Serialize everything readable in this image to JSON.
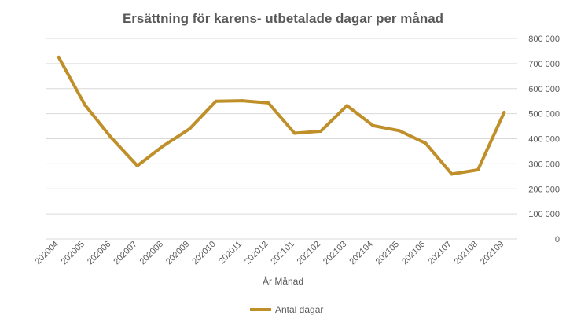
{
  "chart_data": {
    "type": "line",
    "title": "Ersättning för karens- utbetalade dagar per månad",
    "xlabel": "År Månad",
    "ylabel": "",
    "categories": [
      "202004",
      "202005",
      "202006",
      "202007",
      "202008",
      "202009",
      "202010",
      "202011",
      "202012",
      "202101",
      "202102",
      "202103",
      "202104",
      "202105",
      "202106",
      "202107",
      "202108",
      "202109"
    ],
    "series": [
      {
        "name": "Antal dagar",
        "color": "#BF8F2A",
        "values": [
          725000,
          535000,
          405000,
          292000,
          372000,
          440000,
          550000,
          552000,
          543000,
          422000,
          430000,
          532000,
          452000,
          432000,
          382000,
          259000,
          276000,
          505000
        ]
      }
    ],
    "ylim": [
      0,
      800000
    ],
    "yticks": [
      "0",
      "100 000",
      "200 000",
      "300 000",
      "400 000",
      "500 000",
      "600 000",
      "700 000",
      "800 000"
    ],
    "y_axis_side": "right",
    "grid": true,
    "legend": "bottom"
  }
}
